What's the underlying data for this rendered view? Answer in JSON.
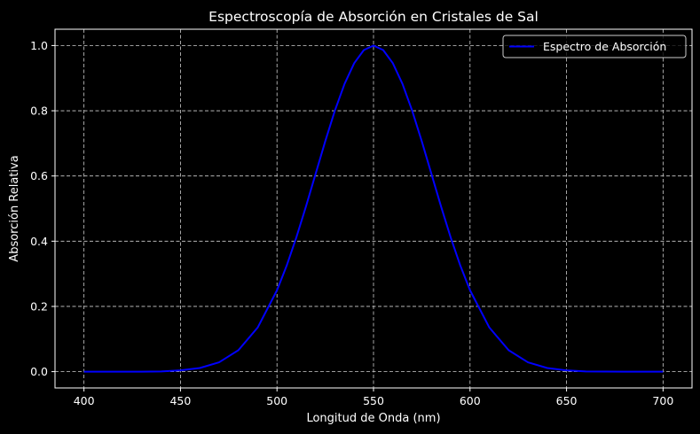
{
  "chart_data": {
    "type": "line",
    "title": "Espectroscopía de Absorción en Cristales de Sal",
    "xlabel": "Longitud de Onda (nm)",
    "ylabel": "Absorción Relativa",
    "xlim": [
      385,
      715
    ],
    "ylim": [
      -0.05,
      1.05
    ],
    "xticks": [
      400,
      450,
      500,
      550,
      600,
      650,
      700
    ],
    "yticks": [
      0.0,
      0.2,
      0.4,
      0.6,
      0.8,
      1.0
    ],
    "xtick_labels": [
      "400",
      "450",
      "500",
      "550",
      "600",
      "650",
      "700"
    ],
    "ytick_labels": [
      "0.0",
      "0.2",
      "0.4",
      "0.6",
      "0.8",
      "1.0"
    ],
    "grid": true,
    "legend_position": "top-right",
    "background": "#000000",
    "foreground": "#ffffff",
    "series": [
      {
        "name": "Espectro de Absorción",
        "color": "#0000ff",
        "x": [
          400,
          410,
          420,
          430,
          440,
          450,
          460,
          470,
          480,
          490,
          500,
          505,
          510,
          515,
          520,
          525,
          530,
          535,
          540,
          545,
          550,
          555,
          560,
          565,
          570,
          575,
          580,
          585,
          590,
          595,
          600,
          610,
          620,
          630,
          640,
          650,
          660,
          670,
          680,
          690,
          700
        ],
        "y": [
          0.0,
          0.0,
          0.0,
          0.0,
          0.0005,
          0.0039,
          0.0111,
          0.0286,
          0.0657,
          0.1353,
          0.2494,
          0.3247,
          0.4111,
          0.5063,
          0.6065,
          0.7066,
          0.8007,
          0.8825,
          0.946,
          0.9862,
          1.0,
          0.9862,
          0.946,
          0.8825,
          0.8007,
          0.7066,
          0.6065,
          0.5063,
          0.4111,
          0.3247,
          0.2494,
          0.1353,
          0.0657,
          0.0286,
          0.0111,
          0.0039,
          0.0005,
          0.0001,
          0.0,
          0.0,
          0.0
        ]
      }
    ]
  }
}
